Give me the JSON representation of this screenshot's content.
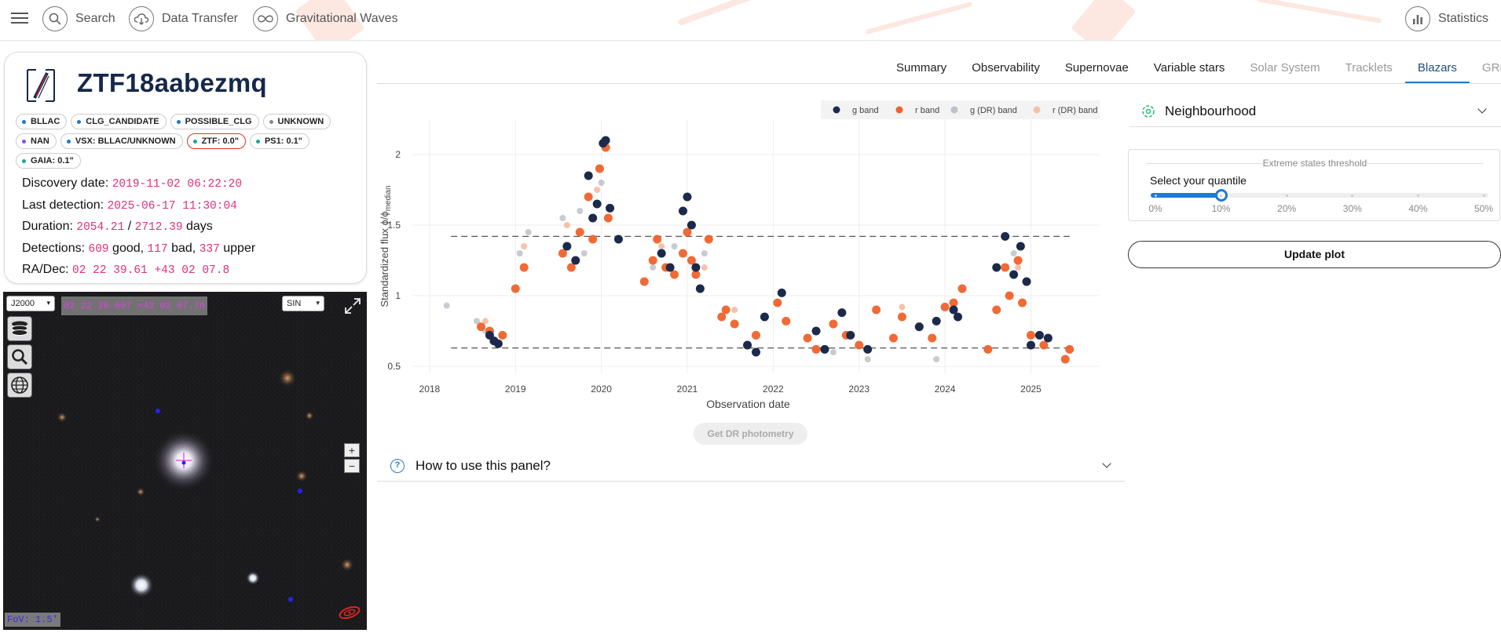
{
  "topbar": {
    "menu_icon": "hamburger-icon",
    "items": [
      {
        "label": "Search",
        "icon": "search-icon"
      },
      {
        "label": "Data Transfer",
        "icon": "cloud-download-icon"
      },
      {
        "label": "Gravitational Waves",
        "icon": "infinity-icon"
      },
      {
        "label": "Statistics",
        "icon": "bar-chart-icon"
      }
    ]
  },
  "tabs": [
    "Summary",
    "Observability",
    "Supernovae",
    "Variable stars",
    "Solar System",
    "Tracklets",
    "Blazars",
    "GRB"
  ],
  "active_tab": "Blazars",
  "object": {
    "name": "ZTF18aabezmq",
    "badges": [
      {
        "label": "BLLAC",
        "color": "#1f77d4"
      },
      {
        "label": "CLG_CANDIDATE",
        "color": "#1f77d4"
      },
      {
        "label": "POSSIBLE_CLG",
        "color": "#1f77d4"
      },
      {
        "label": "UNKNOWN",
        "color": "#888888"
      },
      {
        "label": "NAN",
        "color": "#8a4fe0"
      },
      {
        "label": "VSX: BLLAC/UNKNOWN",
        "color": "#1f77d4"
      },
      {
        "label": "ZTF: 0.0\"",
        "color": "#1aa3a3"
      },
      {
        "label": "PS1: 0.1\"",
        "color": "#1aa3a3"
      },
      {
        "label": "GAIA: 0.1\"",
        "color": "#1aa3a3"
      }
    ],
    "discovery_label": "Discovery date:",
    "discovery_date": "2019-11-02 06:22:20",
    "last_label": "Last detection:",
    "last_detection": "2025-06-17 11:30:04",
    "duration_label": "Duration:",
    "duration_a": "2054.21",
    "duration_sep": " / ",
    "duration_b": "2712.39",
    "duration_unit": " days",
    "detections_label": "Detections:",
    "det_good": "609",
    "det_good_lbl": " good, ",
    "det_bad": "117",
    "det_bad_lbl": " bad, ",
    "det_upper": "337",
    "det_upper_lbl": " upper",
    "radec_label": "RA/Dec:",
    "radec": "02 22 39.61 +43 02 07.8"
  },
  "aladin": {
    "frame": "J2000",
    "coords": "02 22 39.607 +43 02 07.76",
    "projection": "SIN",
    "fov": "FoV: 1.5'",
    "zoom_in": "+",
    "zoom_out": "−"
  },
  "chart_data": {
    "type": "scatter",
    "xlabel": "Observation date",
    "ylabel": "Standardized flux ϕ/ϕ",
    "ylabel_sub": "median",
    "xlim": [
      2017.8,
      2025.8
    ],
    "ylim": [
      0.45,
      2.25
    ],
    "x_ticks": [
      "2018",
      "2019",
      "2020",
      "2021",
      "2022",
      "2023",
      "2024",
      "2025"
    ],
    "y_ticks": [
      "0.5",
      "1",
      "1.5",
      "2"
    ],
    "thresholds": [
      1.42,
      0.63
    ],
    "legend": [
      {
        "name": "g band",
        "color": "#1b2a4a"
      },
      {
        "name": "r band",
        "color": "#f0622a"
      },
      {
        "name": "g (DR) band",
        "color": "#9aa0ad"
      },
      {
        "name": "r (DR) band",
        "color": "#f5b393"
      }
    ],
    "series": [
      {
        "name": "g band",
        "points": [
          [
            2018.7,
            0.72
          ],
          [
            2018.75,
            0.68
          ],
          [
            2018.8,
            0.66
          ],
          [
            2019.6,
            1.35
          ],
          [
            2019.7,
            1.25
          ],
          [
            2019.85,
            1.85
          ],
          [
            2019.9,
            1.55
          ],
          [
            2019.95,
            1.65
          ],
          [
            2020.02,
            2.08
          ],
          [
            2020.05,
            2.1
          ],
          [
            2020.1,
            1.62
          ],
          [
            2020.2,
            1.4
          ],
          [
            2020.7,
            1.3
          ],
          [
            2020.8,
            1.2
          ],
          [
            2020.95,
            1.6
          ],
          [
            2021.0,
            1.7
          ],
          [
            2021.05,
            1.5
          ],
          [
            2021.1,
            1.2
          ],
          [
            2021.15,
            1.05
          ],
          [
            2021.7,
            0.65
          ],
          [
            2021.8,
            0.6
          ],
          [
            2021.9,
            0.85
          ],
          [
            2022.1,
            1.02
          ],
          [
            2022.5,
            0.75
          ],
          [
            2022.6,
            0.62
          ],
          [
            2022.8,
            0.88
          ],
          [
            2022.9,
            0.72
          ],
          [
            2023.1,
            0.62
          ],
          [
            2023.7,
            0.78
          ],
          [
            2023.9,
            0.82
          ],
          [
            2024.1,
            0.9
          ],
          [
            2024.15,
            0.85
          ],
          [
            2024.6,
            1.2
          ],
          [
            2024.7,
            1.42
          ],
          [
            2024.8,
            1.15
          ],
          [
            2024.88,
            1.35
          ],
          [
            2024.95,
            1.1
          ],
          [
            2025.0,
            0.65
          ],
          [
            2025.1,
            0.72
          ],
          [
            2025.2,
            0.7
          ]
        ]
      },
      {
        "name": "r band",
        "points": [
          [
            2018.6,
            0.78
          ],
          [
            2018.7,
            0.75
          ],
          [
            2018.75,
            0.68
          ],
          [
            2018.85,
            0.72
          ],
          [
            2019.0,
            1.05
          ],
          [
            2019.1,
            1.2
          ],
          [
            2019.55,
            1.3
          ],
          [
            2019.65,
            1.2
          ],
          [
            2019.75,
            1.45
          ],
          [
            2019.85,
            1.7
          ],
          [
            2019.9,
            1.4
          ],
          [
            2019.98,
            1.9
          ],
          [
            2020.05,
            2.05
          ],
          [
            2020.08,
            1.55
          ],
          [
            2020.5,
            1.1
          ],
          [
            2020.6,
            1.25
          ],
          [
            2020.65,
            1.4
          ],
          [
            2020.75,
            1.2
          ],
          [
            2020.85,
            1.15
          ],
          [
            2020.95,
            1.3
          ],
          [
            2021.0,
            1.45
          ],
          [
            2021.05,
            1.25
          ],
          [
            2021.1,
            1.15
          ],
          [
            2021.25,
            1.4
          ],
          [
            2021.4,
            0.85
          ],
          [
            2021.45,
            0.9
          ],
          [
            2021.55,
            0.8
          ],
          [
            2021.7,
            0.65
          ],
          [
            2021.8,
            0.72
          ],
          [
            2022.05,
            0.95
          ],
          [
            2022.15,
            0.82
          ],
          [
            2022.4,
            0.7
          ],
          [
            2022.5,
            0.62
          ],
          [
            2022.7,
            0.8
          ],
          [
            2022.85,
            0.72
          ],
          [
            2023.0,
            0.65
          ],
          [
            2023.2,
            0.9
          ],
          [
            2023.4,
            0.7
          ],
          [
            2023.5,
            0.85
          ],
          [
            2023.7,
            0.78
          ],
          [
            2023.85,
            0.7
          ],
          [
            2024.0,
            0.92
          ],
          [
            2024.1,
            0.95
          ],
          [
            2024.2,
            1.05
          ],
          [
            2024.5,
            0.62
          ],
          [
            2024.6,
            0.9
          ],
          [
            2024.7,
            1.2
          ],
          [
            2024.75,
            1.0
          ],
          [
            2024.85,
            1.25
          ],
          [
            2024.9,
            0.95
          ],
          [
            2025.0,
            0.72
          ],
          [
            2025.15,
            0.65
          ],
          [
            2025.4,
            0.55
          ],
          [
            2025.45,
            0.62
          ]
        ]
      },
      {
        "name": "g (DR) band",
        "points": [
          [
            2018.2,
            0.93
          ],
          [
            2018.55,
            0.82
          ],
          [
            2018.65,
            0.75
          ],
          [
            2019.05,
            1.3
          ],
          [
            2019.15,
            1.45
          ],
          [
            2019.55,
            1.55
          ],
          [
            2019.75,
            1.6
          ],
          [
            2019.8,
            1.3
          ],
          [
            2020.0,
            1.8
          ],
          [
            2020.6,
            1.2
          ],
          [
            2020.85,
            1.35
          ],
          [
            2021.2,
            1.3
          ],
          [
            2022.7,
            0.6
          ],
          [
            2023.1,
            0.55
          ],
          [
            2023.9,
            0.55
          ],
          [
            2024.8,
            1.3
          ]
        ]
      },
      {
        "name": "r (DR) band",
        "points": [
          [
            2018.65,
            0.82
          ],
          [
            2019.1,
            1.35
          ],
          [
            2019.6,
            1.5
          ],
          [
            2019.95,
            1.75
          ],
          [
            2020.7,
            1.35
          ],
          [
            2021.2,
            1.2
          ],
          [
            2021.55,
            0.9
          ],
          [
            2023.5,
            0.92
          ],
          [
            2024.85,
            1.2
          ]
        ]
      }
    ]
  },
  "dr_button": "Get DR photometry",
  "howto": "How to use this panel?",
  "neighbourhood": {
    "label": "Neighbourhood",
    "icon": "target-icon"
  },
  "extreme": {
    "legend": "Extreme states threshold",
    "label": "Select your quantile",
    "value_fraction": 0.1,
    "ticks": [
      "0%",
      "10%",
      "20%",
      "30%",
      "40%",
      "50%"
    ]
  },
  "update_button": "Update plot"
}
